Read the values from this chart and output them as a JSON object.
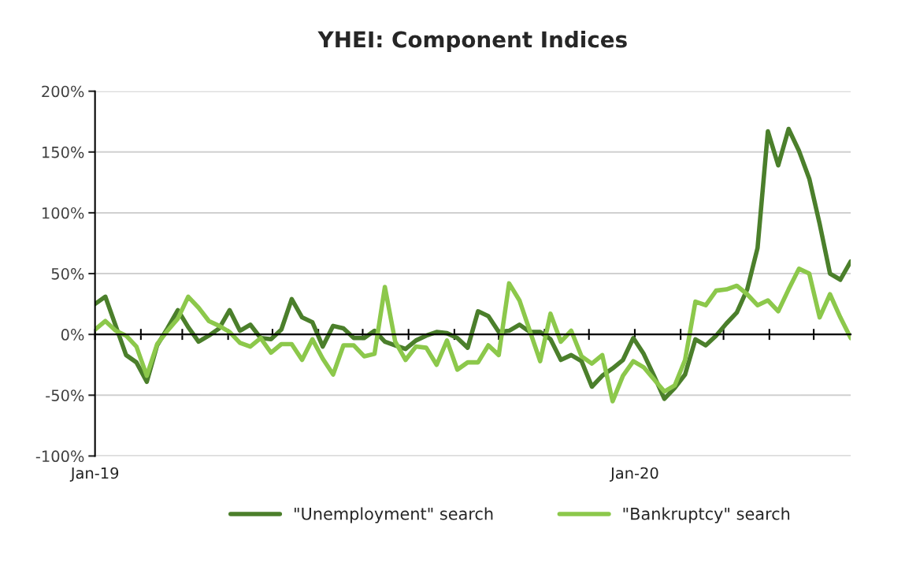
{
  "chart_data": {
    "type": "line",
    "title": "YHEI: Component Indices",
    "x": [
      "2019-01-01",
      "2019-01-08",
      "2019-01-15",
      "2019-01-22",
      "2019-01-29",
      "2019-02-05",
      "2019-02-12",
      "2019-02-19",
      "2019-02-26",
      "2019-03-05",
      "2019-03-12",
      "2019-03-19",
      "2019-03-26",
      "2019-04-02",
      "2019-04-09",
      "2019-04-16",
      "2019-04-23",
      "2019-04-30",
      "2019-05-07",
      "2019-05-14",
      "2019-05-21",
      "2019-05-28",
      "2019-06-04",
      "2019-06-11",
      "2019-06-18",
      "2019-06-25",
      "2019-07-02",
      "2019-07-09",
      "2019-07-16",
      "2019-07-23",
      "2019-07-30",
      "2019-08-06",
      "2019-08-13",
      "2019-08-20",
      "2019-08-27",
      "2019-09-03",
      "2019-09-10",
      "2019-09-17",
      "2019-09-24",
      "2019-10-01",
      "2019-10-08",
      "2019-10-15",
      "2019-10-22",
      "2019-10-29",
      "2019-11-05",
      "2019-11-12",
      "2019-11-19",
      "2019-11-26",
      "2019-12-03",
      "2019-12-10",
      "2019-12-17",
      "2019-12-24",
      "2019-12-31",
      "2020-01-07",
      "2020-01-14",
      "2020-01-21",
      "2020-01-28",
      "2020-02-04",
      "2020-02-11",
      "2020-02-18",
      "2020-02-25",
      "2020-03-03",
      "2020-03-10",
      "2020-03-17",
      "2020-03-24",
      "2020-03-31",
      "2020-04-07",
      "2020-04-14",
      "2020-04-21",
      "2020-04-28",
      "2020-05-05",
      "2020-05-12",
      "2020-05-19",
      "2020-05-26"
    ],
    "series": [
      {
        "name": "\"Unemployment\" search",
        "color": "#4b7f2b",
        "values": [
          25,
          31,
          7,
          -17,
          -23,
          -39,
          -9,
          5,
          20,
          6,
          -6,
          -1,
          5,
          20,
          3,
          8,
          -3,
          -4,
          4,
          29,
          14,
          10,
          -10,
          7,
          5,
          -3,
          -3,
          3,
          -6,
          -9,
          -12,
          -5,
          -1,
          2,
          1,
          -3,
          -11,
          19,
          15,
          2,
          3,
          8,
          2,
          2,
          -4,
          -21,
          -17,
          -22,
          -43,
          -34,
          -28,
          -21,
          -3,
          -16,
          -34,
          -53,
          -44,
          -33,
          -4,
          -9,
          -1,
          9,
          18,
          37,
          71,
          167,
          139,
          169,
          151,
          128,
          91,
          50,
          45,
          60
        ]
      },
      {
        "name": "\"Bankruptcy\" search",
        "color": "#8cc84b",
        "values": [
          4,
          11,
          3,
          -1,
          -10,
          -34,
          -8,
          3,
          13,
          31,
          22,
          11,
          7,
          2,
          -7,
          -10,
          -3,
          -15,
          -8,
          -8,
          -21,
          -4,
          -20,
          -33,
          -9,
          -9,
          -18,
          -16,
          39,
          -6,
          -21,
          -10,
          -11,
          -25,
          -5,
          -29,
          -23,
          -23,
          -9,
          -17,
          42,
          28,
          3,
          -22,
          17,
          -6,
          3,
          -18,
          -24,
          -17,
          -55,
          -34,
          -22,
          -27,
          -37,
          -47,
          -42,
          -21,
          27,
          24,
          36,
          37,
          40,
          33,
          24,
          28,
          19,
          37,
          54,
          50,
          14,
          33,
          14,
          -3
        ]
      }
    ],
    "xlim": [
      "2019-01-01",
      "2020-05-26"
    ],
    "xticks": [
      {
        "value": "2019-01-01",
        "label": "Jan-19"
      },
      {
        "value": "2019-02-01",
        "label": null
      },
      {
        "value": "2019-03-01",
        "label": null
      },
      {
        "value": "2019-04-01",
        "label": null
      },
      {
        "value": "2019-05-01",
        "label": null
      },
      {
        "value": "2019-06-01",
        "label": null
      },
      {
        "value": "2019-07-01",
        "label": null
      },
      {
        "value": "2019-08-01",
        "label": null
      },
      {
        "value": "2019-09-01",
        "label": null
      },
      {
        "value": "2019-10-01",
        "label": null
      },
      {
        "value": "2019-11-01",
        "label": null
      },
      {
        "value": "2019-12-01",
        "label": null
      },
      {
        "value": "2020-01-01",
        "label": "Jan-20"
      },
      {
        "value": "2020-02-01",
        "label": null
      },
      {
        "value": "2020-03-01",
        "label": null
      },
      {
        "value": "2020-04-01",
        "label": null
      },
      {
        "value": "2020-05-01",
        "label": null
      }
    ],
    "ylim": [
      -100,
      200
    ],
    "yticks": [
      {
        "value": -100,
        "label": "-100%"
      },
      {
        "value": -50,
        "label": "-50%"
      },
      {
        "value": 0,
        "label": "0%"
      },
      {
        "value": 50,
        "label": "50%"
      },
      {
        "value": 100,
        "label": "100%"
      },
      {
        "value": 150,
        "label": "150%"
      },
      {
        "value": 200,
        "label": "200%"
      }
    ],
    "grid": "y",
    "legend": "bottom",
    "marker": "none",
    "line_style": "solid"
  }
}
